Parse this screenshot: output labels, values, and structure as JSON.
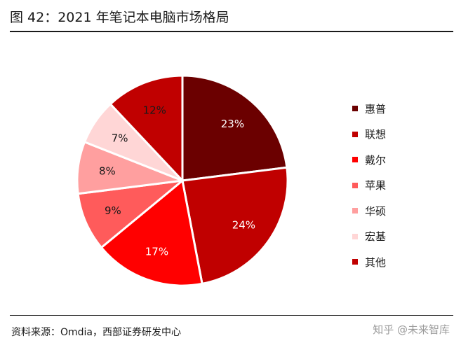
{
  "header": {
    "title": "图 42：2021 年笔记本电脑市场格局"
  },
  "footer": {
    "source": "资料来源：Omdia，西部证券研发中心",
    "watermark": "知乎 @未来智库"
  },
  "chart_data": {
    "type": "pie",
    "title": "图 42：2021 年笔记本电脑市场格局",
    "start_angle_deg": 0,
    "direction": "clockwise",
    "legend_position": "right",
    "slices": [
      {
        "name": "惠普",
        "value": 23,
        "label": "23%",
        "color": "#6b0000",
        "label_color": "#ffffff"
      },
      {
        "name": "联想",
        "value": 24,
        "label": "24%",
        "color": "#c00000",
        "label_color": "#ffffff"
      },
      {
        "name": "戴尔",
        "value": 17,
        "label": "17%",
        "color": "#ff0000",
        "label_color": "#ffffff"
      },
      {
        "name": "苹果",
        "value": 9,
        "label": "9%",
        "color": "#ff5b5b",
        "label_color": "#1a1a1a"
      },
      {
        "name": "华硕",
        "value": 8,
        "label": "8%",
        "color": "#ff9f9f",
        "label_color": "#1a1a1a"
      },
      {
        "name": "宏基",
        "value": 7,
        "label": "7%",
        "color": "#ffd6d6",
        "label_color": "#1a1a1a"
      },
      {
        "name": "其他",
        "value": 12,
        "label": "12%",
        "color": "#c00000",
        "label_color": "#1a1a1a"
      }
    ]
  }
}
